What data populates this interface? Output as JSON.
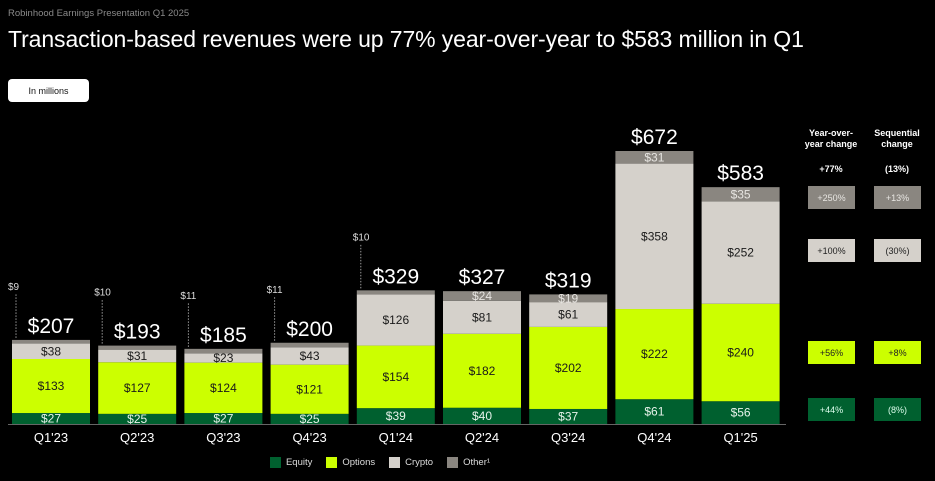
{
  "header": {
    "subtitle": "Robinhood Earnings Presentation Q1 2025",
    "title": "Transaction-based revenues were up 77% year-over-year to $583 million in Q1",
    "units_badge": "In millions"
  },
  "colors": {
    "equity": "#00602f",
    "options": "#ccff00",
    "crypto": "#d5d1cb",
    "other": "#8a8680",
    "background": "#000000"
  },
  "chart_data": {
    "type": "bar",
    "stacked": true,
    "title": "Transaction-based revenues",
    "units": "In millions",
    "categories": [
      "Q1'23",
      "Q2'23",
      "Q3'23",
      "Q4'23",
      "Q1'24",
      "Q2'24",
      "Q3'24",
      "Q4'24",
      "Q1'25"
    ],
    "series": [
      {
        "name": "Equity",
        "key": "equity",
        "values": [
          27,
          25,
          27,
          25,
          39,
          40,
          37,
          61,
          56
        ]
      },
      {
        "name": "Options",
        "key": "options",
        "values": [
          133,
          127,
          124,
          121,
          154,
          182,
          202,
          222,
          240
        ]
      },
      {
        "name": "Crypto",
        "key": "crypto",
        "values": [
          38,
          31,
          23,
          43,
          126,
          81,
          61,
          358,
          252
        ]
      },
      {
        "name": "Other¹",
        "key": "other",
        "values": [
          9,
          10,
          11,
          11,
          10,
          24,
          19,
          31,
          35
        ]
      }
    ],
    "totals": [
      207,
      193,
      185,
      200,
      329,
      327,
      319,
      672,
      583
    ],
    "segment_labels": [
      [
        "$27",
        "$133",
        "$38",
        "$9"
      ],
      [
        "$25",
        "$127",
        "$31",
        "$10"
      ],
      [
        "$27",
        "$124",
        "$23",
        "$11"
      ],
      [
        "$25",
        "$121",
        "$43",
        "$11"
      ],
      [
        "$39",
        "$154",
        "$126",
        "$10"
      ],
      [
        "$40",
        "$182",
        "$81",
        "$24"
      ],
      [
        "$37",
        "$202",
        "$61",
        "$19"
      ],
      [
        "$61",
        "$222",
        "$358",
        "$31"
      ],
      [
        "$56",
        "$240",
        "$252",
        "$35"
      ]
    ],
    "total_labels": [
      "$207",
      "$193",
      "$185",
      "$200",
      "$329",
      "$327",
      "$319",
      "$672",
      "$583"
    ],
    "other_callout": [
      true,
      true,
      true,
      true,
      true,
      false,
      false,
      false,
      false
    ],
    "xlabel": "",
    "ylabel": "",
    "ylim": [
      0,
      700
    ],
    "grid": false,
    "legend": {
      "placement": "bottom",
      "entries": [
        "Equity",
        "Options",
        "Crypto",
        "Other¹"
      ]
    }
  },
  "changes": {
    "yoy_header": [
      "Year-over-",
      "year change"
    ],
    "seq_header": [
      "Sequential",
      "change"
    ],
    "total_yoy": "+77%",
    "total_seq": "(13%)",
    "rows": [
      {
        "segment": "other",
        "yoy": "+250%",
        "seq": "+13%"
      },
      {
        "segment": "crypto",
        "yoy": "+100%",
        "seq": "(30%)"
      },
      {
        "segment": "options",
        "yoy": "+56%",
        "seq": "+8%"
      },
      {
        "segment": "equity",
        "yoy": "+44%",
        "seq": "(8%)"
      }
    ]
  }
}
